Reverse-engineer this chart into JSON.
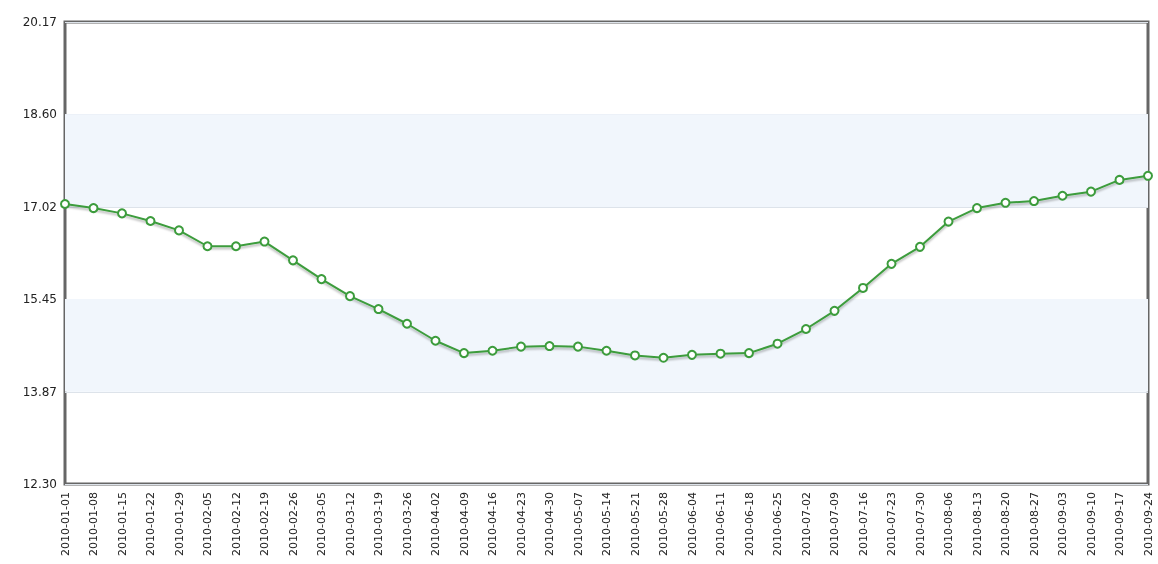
{
  "chart_data": {
    "type": "line",
    "categories": [
      "2010-01-01",
      "2010-01-08",
      "2010-01-15",
      "2010-01-22",
      "2010-01-29",
      "2010-02-05",
      "2010-02-12",
      "2010-02-19",
      "2010-02-26",
      "2010-03-05",
      "2010-03-12",
      "2010-03-19",
      "2010-03-26",
      "2010-04-02",
      "2010-04-09",
      "2010-04-16",
      "2010-04-23",
      "2010-04-30",
      "2010-05-07",
      "2010-05-14",
      "2010-05-21",
      "2010-05-28",
      "2010-06-04",
      "2010-06-11",
      "2010-06-18",
      "2010-06-25",
      "2010-07-02",
      "2010-07-09",
      "2010-07-16",
      "2010-07-23",
      "2010-07-30",
      "2010-08-06",
      "2010-08-13",
      "2010-08-20",
      "2010-08-27",
      "2010-09-03",
      "2010-09-10",
      "2010-09-17",
      "2010-09-24"
    ],
    "series": [
      {
        "color": "#3c9c3c",
        "values": [
          17.07,
          17.0,
          16.91,
          16.78,
          16.62,
          16.35,
          16.35,
          16.43,
          16.11,
          15.79,
          15.5,
          15.28,
          15.03,
          14.74,
          14.53,
          14.57,
          14.64,
          14.65,
          14.64,
          14.57,
          14.49,
          14.45,
          14.5,
          14.52,
          14.53,
          14.69,
          14.94,
          15.25,
          15.64,
          16.05,
          16.34,
          16.77,
          17.0,
          17.09,
          17.12,
          17.21,
          17.28,
          17.48,
          17.55
        ]
      }
    ],
    "ylim": [
      12.3,
      20.17
    ],
    "yticks": [
      {
        "value": 12.3,
        "label": "12.30"
      },
      13.87,
      15.45,
      17.02,
      {
        "value": 18.6,
        "label": "18.60"
      },
      20.17
    ],
    "bands": [
      {
        "axis": "y",
        "from": 13.87,
        "to": 15.45,
        "color": "#f1f6fc"
      },
      {
        "axis": "y",
        "from": 17.02,
        "to": 18.6,
        "color": "#f1f6fc"
      }
    ],
    "grid": "y",
    "marker": "circle",
    "line_style": "solid"
  }
}
